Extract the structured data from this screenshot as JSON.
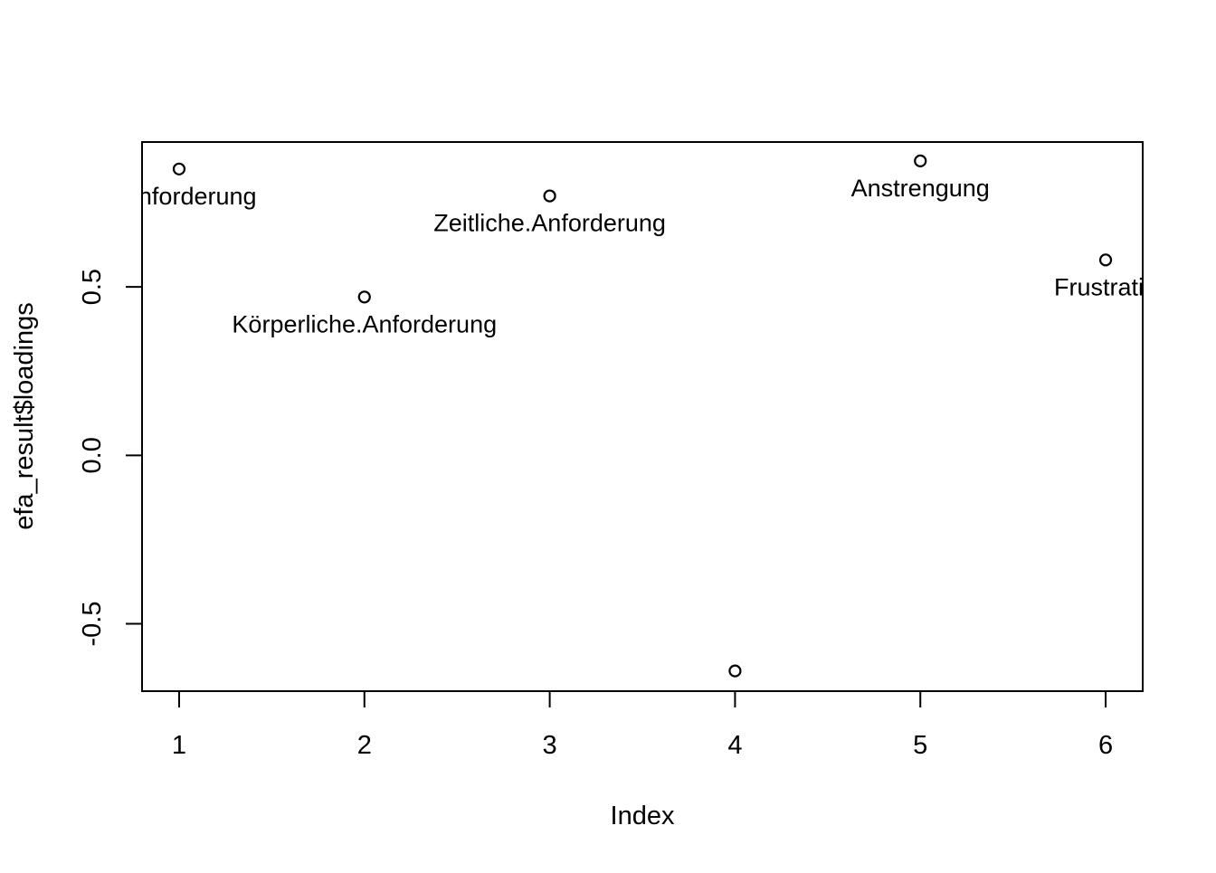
{
  "chart_data": {
    "type": "scatter",
    "title": "",
    "xlabel": "Index",
    "ylabel": "efa_result$loadings",
    "xlim": [
      0.8,
      6.2
    ],
    "ylim": [
      -0.7,
      0.93
    ],
    "x_ticks": [
      1,
      2,
      3,
      4,
      5,
      6
    ],
    "x_tick_labels": [
      "1",
      "2",
      "3",
      "4",
      "5",
      "6"
    ],
    "y_ticks": [
      -0.5,
      0.0,
      0.5
    ],
    "y_tick_labels": [
      "-0.5",
      "0.0",
      "0.5"
    ],
    "grid": false,
    "marker": "open-circle",
    "point_labels": [
      "e.Anforderung",
      "Körperliche.Anforderung",
      "Zeitliche.Anforderung",
      "",
      "Anstrengung",
      "Frustratio"
    ],
    "x": [
      1,
      2,
      3,
      4,
      5,
      6
    ],
    "y": [
      0.85,
      0.47,
      0.77,
      -0.64,
      0.874,
      0.58
    ]
  }
}
